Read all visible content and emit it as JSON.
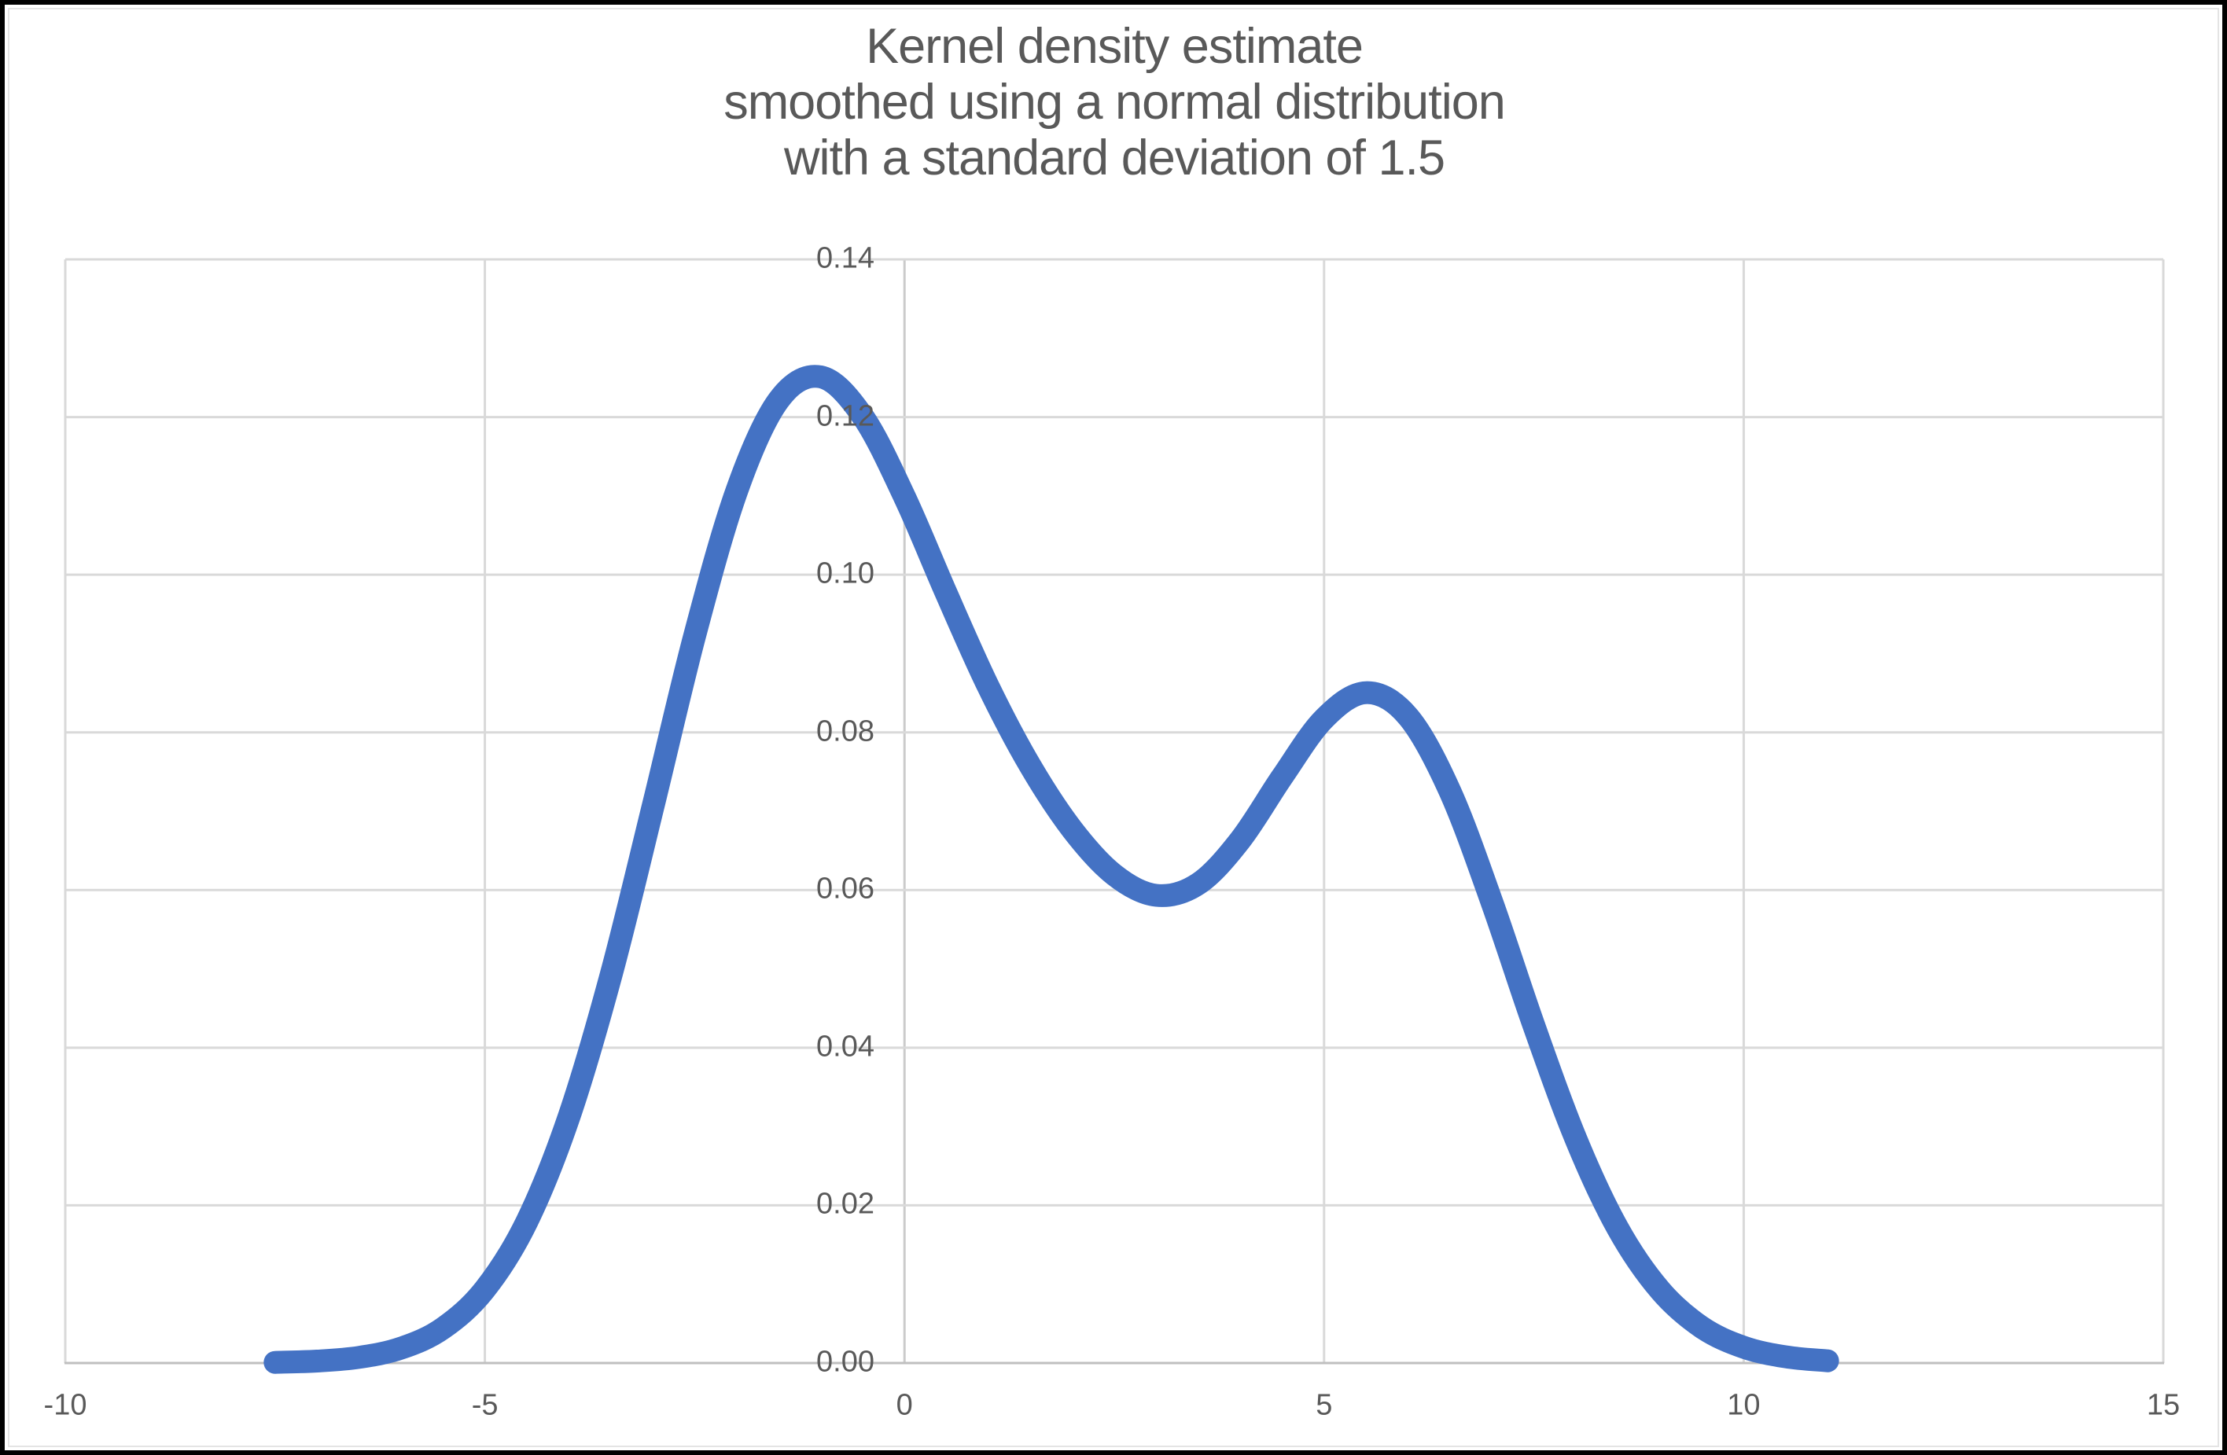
{
  "frame": {
    "outer_border_color": "#000000",
    "chart_border_color": "#e4e4e4",
    "background_color": "#ffffff"
  },
  "chart_data": {
    "type": "line",
    "title_lines": [
      "Kernel density estimate",
      "smoothed using a normal distribution",
      "with a standard deviation of 1.5"
    ],
    "x_axis": {
      "min": -10,
      "max": 15,
      "tick_values": [
        -10,
        -5,
        0,
        5,
        10,
        15
      ],
      "tick_labels": [
        "-10",
        "-5",
        "0",
        "5",
        "10",
        "15"
      ],
      "crosses_at": 0
    },
    "y_axis": {
      "min": 0,
      "max": 0.14,
      "tick_values": [
        0,
        0.02,
        0.04,
        0.06,
        0.08,
        0.1,
        0.12,
        0.14
      ],
      "tick_labels": [
        "0.00",
        "0.02",
        "0.04",
        "0.06",
        "0.08",
        "0.10",
        "0.12",
        "0.14"
      ]
    },
    "grid": true,
    "legend": "none",
    "colors": {
      "series": "#4472C4",
      "gridline": "#D9D9D9",
      "zero_gridline": "#CBCBCB",
      "axis_line": "#BFBFBF",
      "text": "#595959"
    },
    "series": [
      {
        "line_width": 29,
        "smooth": true,
        "x": [
          -7.5,
          -7.0,
          -6.5,
          -6.0,
          -5.5,
          -5.0,
          -4.5,
          -4.0,
          -3.5,
          -3.0,
          -2.5,
          -2.0,
          -1.5,
          -1.0,
          -0.5,
          0.0,
          0.5,
          1.0,
          1.5,
          2.0,
          2.5,
          3.0,
          3.5,
          4.0,
          4.5,
          5.0,
          5.5,
          6.0,
          6.5,
          7.0,
          7.5,
          8.0,
          8.5,
          9.0,
          9.5,
          10.0,
          10.5,
          11.0
        ],
        "y": [
          8e-05,
          0.00025,
          0.00072,
          0.00188,
          0.00441,
          0.00935,
          0.01794,
          0.03115,
          0.04909,
          0.07043,
          0.09227,
          0.1106,
          0.12213,
          0.1251,
          0.12014,
          0.10989,
          0.09758,
          0.08578,
          0.07572,
          0.06767,
          0.06193,
          0.05933,
          0.06079,
          0.06633,
          0.07435,
          0.08173,
          0.08504,
          0.08202,
          0.07252,
          0.05846,
          0.04281,
          0.02843,
          0.01708,
          0.00928,
          0.00454,
          0.002,
          0.00079,
          0.00028
        ]
      }
    ]
  }
}
